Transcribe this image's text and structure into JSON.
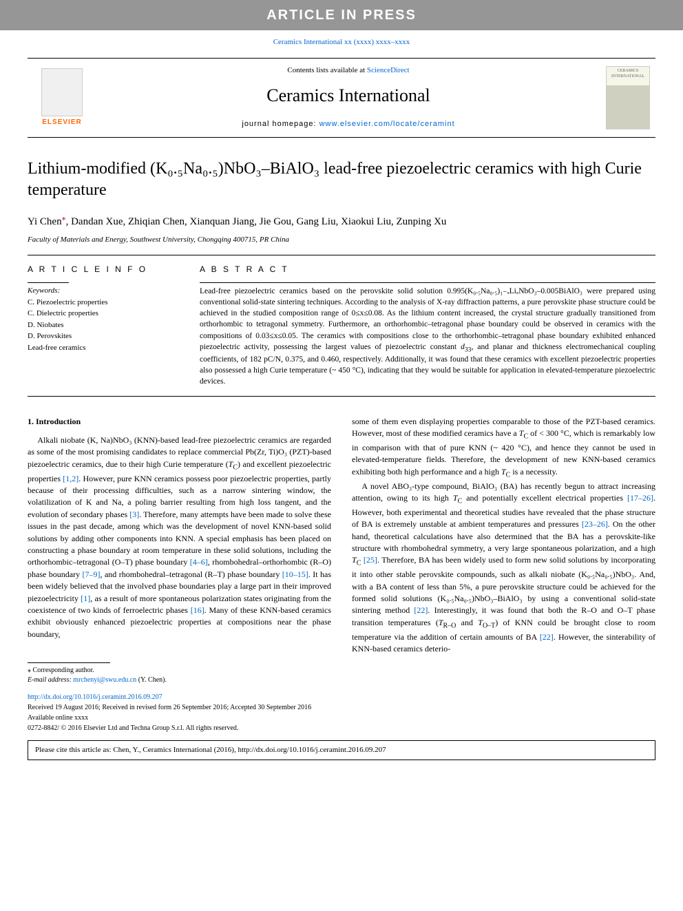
{
  "banner": "ARTICLE IN PRESS",
  "journal_ref_link": "Ceramics International xx (xxxx) xxxx–xxxx",
  "header": {
    "elsevier_label": "ELSEVIER",
    "contents_prefix": "Contents lists available at ",
    "contents_link": "ScienceDirect",
    "journal_title": "Ceramics International",
    "homepage_prefix": "journal homepage: ",
    "homepage_link": "www.elsevier.com/locate/ceramint",
    "cover_text": "CERAMICS INTERNATIONAL"
  },
  "title": "Lithium-modified (K₀.₅Na₀.₅)NbO₃–BiAlO₃ lead-free piezoelectric ceramics with high Curie temperature",
  "authors_html": "Yi Chen<sup class='corr-mark'>⁎</sup>, Dandan Xue, Zhiqian Chen, Xianquan Jiang, Jie Gou, Gang Liu, Xiaokui Liu, Zunping Xu",
  "affiliation": "Faculty of Materials and Energy, Southwest University, Chongqing 400715, PR China",
  "article_info_head": "A R T I C L E  I N F O",
  "keywords_label": "Keywords:",
  "keywords": [
    "C. Piezoelectric properties",
    "C. Dielectric properties",
    "D. Niobates",
    "D. Perovskites",
    "Lead-free ceramics"
  ],
  "abstract_head": "A B S T R A C T",
  "abstract": "Lead-free piezoelectric ceramics based on the perovskite solid solution 0.995(K₀.₅Na₀.₅)₁₋ₓLiₓNbO₃–0.005BiAlO₃ were prepared using conventional solid-state sintering techniques. According to the analysis of X-ray diffraction patterns, a pure perovskite phase structure could be achieved in the studied composition range of 0≤x≤0.08. As the lithium content increased, the crystal structure gradually transitioned from orthorhombic to tetragonal symmetry. Furthermore, an orthorhombic–tetragonal phase boundary could be observed in ceramics with the compositions of 0.03≤x≤0.05. The ceramics with compositions close to the orthorhombic–tetragonal phase boundary exhibited enhanced piezoelectric activity, possessing the largest values of piezoelectric constant d₃₃, and planar and thickness electromechanical coupling coefficients, of 182 pC/N, 0.375, and 0.460, respectively. Additionally, it was found that these ceramics with excellent piezoelectric properties also possessed a high Curie temperature (~ 450 °C), indicating that they would be suitable for application in elevated-temperature piezoelectric devices.",
  "intro_head": "1. Introduction",
  "col1": "Alkali niobate (K, Na)NbO₃ (KNN)-based lead-free piezoelectric ceramics are regarded as some of the most promising candidates to replace commercial Pb(Zr, Ti)O₃ (PZT)-based piezoelectric ceramics, due to their high Curie temperature (T_C) and excellent piezoelectric properties [1,2]. However, pure KNN ceramics possess poor piezoelectric properties, partly because of their processing difficulties, such as a narrow sintering window, the volatilization of K and Na, a poling barrier resulting from high loss tangent, and the evolution of secondary phases [3]. Therefore, many attempts have been made to solve these issues in the past decade, among which was the development of novel KNN-based solid solutions by adding other components into KNN. A special emphasis has been placed on constructing a phase boundary at room temperature in these solid solutions, including the orthorhombic–tetragonal (O–T) phase boundary [4–6], rhombohedral–orthorhombic (R–O) phase boundary [7–9], and rhombohedral–tetragonal (R–T) phase boundary [10–15]. It has been widely believed that the involved phase boundaries play a large part in their improved piezoelectricity [1], as a result of more spontaneous polarization states originating from the coexistence of two kinds of ferroelectric phases [16]. Many of these KNN-based ceramics exhibit obviously enhanced piezoelectric properties at compositions near the phase boundary,",
  "col2_p1": "some of them even displaying properties comparable to those of the PZT-based ceramics. However, most of these modified ceramics have a T_C of < 300 °C, which is remarkably low in comparison with that of pure KNN (~ 420 °C), and hence they cannot be used in elevated-temperature fields. Therefore, the development of new KNN-based ceramics exhibiting both high performance and a high T_C is a necessity.",
  "col2_p2": "A novel ABO₃-type compound, BiAlO₃ (BA) has recently begun to attract increasing attention, owing to its high T_C and potentially excellent electrical properties [17–26]. However, both experimental and theoretical studies have revealed that the phase structure of BA is extremely unstable at ambient temperatures and pressures [23–26]. On the other hand, theoretical calculations have also determined that the BA has a perovskite-like structure with rhombohedral symmetry, a very large spontaneous polarization, and a high T_C [25]. Therefore, BA has been widely used to form new solid solutions by incorporating it into other stable perovskite compounds, such as alkali niobate (K₀.₅Na₀.₅)NbO₃. And, with a BA content of less than 5%, a pure perovskite structure could be achieved for the formed solid solutions (K₀.₅Na₀.₅)NbO₃–BiAlO₃ by using a conventional solid-state sintering method [22]. Interestingly, it was found that both the R–O and O–T phase transition temperatures (T_{R–O} and T_{O–T}) of KNN could be brought close to room temperature via the addition of certain amounts of BA [22]. However, the sinterability of KNN-based ceramics deterio-",
  "footnotes": {
    "corr": "⁎ Corresponding author.",
    "email_label": "E-mail address: ",
    "email": "mrchenyi@swu.edu.cn",
    "email_suffix": " (Y. Chen)."
  },
  "doi_block": {
    "doi_link": "http://dx.doi.org/10.1016/j.ceramint.2016.09.207",
    "received": "Received 19 August 2016; Received in revised form 26 September 2016; Accepted 30 September 2016",
    "available": "Available online xxxx",
    "issn": "0272-8842/ © 2016 Elsevier Ltd and Techna Group S.r.l. All rights reserved."
  },
  "cite_box": "Please cite this article as: Chen, Y., Ceramics International (2016), http://dx.doi.org/10.1016/j.ceramint.2016.09.207"
}
